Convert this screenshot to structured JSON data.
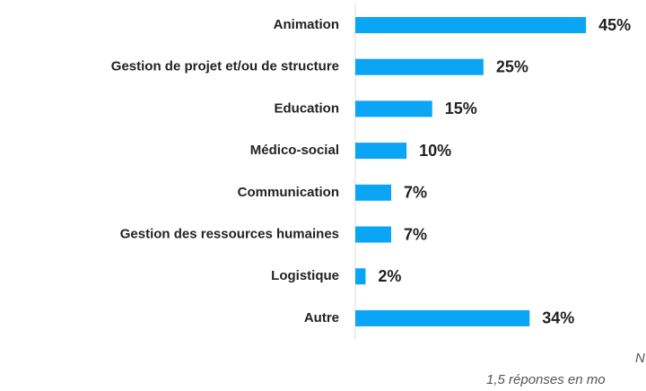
{
  "chart_data": {
    "type": "barh",
    "categories": [
      "Animation",
      "Gestion de projet et/ou de structure",
      "Education",
      "Médico-social",
      "Communication",
      "Gestion des ressources humaines",
      "Logistique",
      "Autre"
    ],
    "values": [
      45,
      25,
      15,
      10,
      7,
      7,
      2,
      34
    ],
    "value_labels": [
      "45%",
      "25%",
      "15%",
      "10%",
      "7%",
      "7%",
      "2%",
      "34%"
    ],
    "color": "#0aa5f5",
    "xlim": [
      0,
      50
    ],
    "annotations": [
      "N",
      "1,5 réponses en mo"
    ]
  }
}
